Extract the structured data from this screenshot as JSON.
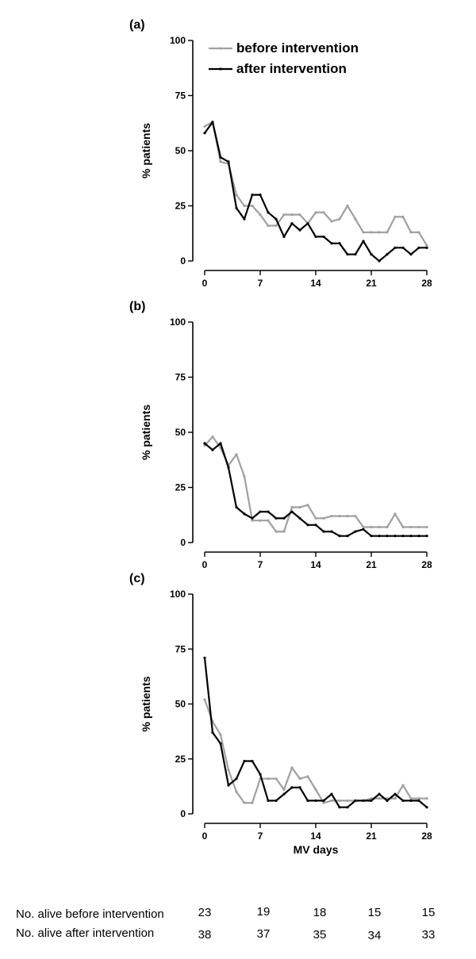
{
  "chart_data": [
    {
      "panel": "(a)",
      "type": "line",
      "ylabel": "% patients",
      "xlabel": "",
      "xticks": [
        0,
        7,
        14,
        21,
        28
      ],
      "yticks": [
        0,
        25,
        50,
        75,
        100
      ],
      "xlim": [
        0,
        28
      ],
      "ylim": [
        0,
        100
      ],
      "legend": {
        "position": "top-right",
        "entries": [
          "before intervention",
          "after intervention"
        ]
      },
      "series": [
        {
          "name": "before intervention",
          "color": "#a0a0a0",
          "x": [
            0,
            1,
            2,
            3,
            4,
            5,
            6,
            7,
            8,
            9,
            10,
            11,
            12,
            13,
            14,
            15,
            16,
            17,
            18,
            19,
            20,
            21,
            22,
            23,
            24,
            25,
            26,
            27,
            28
          ],
          "y": [
            61,
            63,
            45,
            44,
            30,
            25,
            25,
            21,
            16,
            16,
            21,
            21,
            21,
            17,
            22,
            22,
            18,
            19,
            25,
            19,
            13,
            13,
            13,
            13,
            20,
            20,
            13,
            13,
            7
          ]
        },
        {
          "name": "after intervention",
          "color": "#000000",
          "x": [
            0,
            1,
            2,
            3,
            4,
            5,
            6,
            7,
            8,
            9,
            10,
            11,
            12,
            13,
            14,
            15,
            16,
            17,
            18,
            19,
            20,
            21,
            22,
            23,
            24,
            25,
            26,
            27,
            28
          ],
          "y": [
            58,
            63,
            47,
            45,
            24,
            19,
            30,
            30,
            22,
            19,
            11,
            17,
            14,
            17,
            11,
            11,
            8,
            8,
            3,
            3,
            9,
            3,
            0,
            3,
            6,
            6,
            3,
            6,
            6
          ]
        }
      ]
    },
    {
      "panel": "(b)",
      "type": "line",
      "ylabel": "% patients",
      "xlabel": "",
      "xticks": [
        0,
        7,
        14,
        21,
        28
      ],
      "yticks": [
        0,
        25,
        50,
        75,
        100
      ],
      "xlim": [
        0,
        28
      ],
      "ylim": [
        0,
        100
      ],
      "series": [
        {
          "name": "before intervention",
          "color": "#a0a0a0",
          "x": [
            0,
            1,
            2,
            3,
            4,
            5,
            6,
            7,
            8,
            9,
            10,
            11,
            12,
            13,
            14,
            15,
            16,
            17,
            18,
            19,
            20,
            21,
            22,
            23,
            24,
            25,
            26,
            27,
            28
          ],
          "y": [
            44,
            48,
            43,
            35,
            40,
            30,
            10,
            10,
            10,
            5,
            5,
            16,
            16,
            17,
            11,
            11,
            12,
            12,
            12,
            12,
            7,
            7,
            7,
            7,
            13,
            7,
            7,
            7,
            7
          ]
        },
        {
          "name": "after intervention",
          "color": "#000000",
          "x": [
            0,
            1,
            2,
            3,
            4,
            5,
            6,
            7,
            8,
            9,
            10,
            11,
            12,
            13,
            14,
            15,
            16,
            17,
            18,
            19,
            20,
            21,
            22,
            23,
            24,
            25,
            26,
            27,
            28
          ],
          "y": [
            45,
            42,
            45,
            34,
            16,
            13,
            11,
            14,
            14,
            11,
            11,
            14,
            11,
            8,
            8,
            5,
            5,
            3,
            3,
            5,
            6,
            3,
            3,
            3,
            3,
            3,
            3,
            3,
            3
          ]
        }
      ]
    },
    {
      "panel": "(c)",
      "type": "line",
      "ylabel": "% patients",
      "xlabel": "MV days",
      "xticks": [
        0,
        7,
        14,
        21,
        28
      ],
      "yticks": [
        0,
        25,
        50,
        75,
        100
      ],
      "xlim": [
        0,
        28
      ],
      "ylim": [
        0,
        100
      ],
      "series": [
        {
          "name": "before intervention",
          "color": "#a0a0a0",
          "x": [
            0,
            1,
            2,
            3,
            4,
            5,
            6,
            7,
            8,
            9,
            10,
            11,
            12,
            13,
            14,
            15,
            16,
            17,
            18,
            19,
            20,
            21,
            22,
            23,
            24,
            25,
            26,
            27,
            28
          ],
          "y": [
            52,
            42,
            36,
            20,
            10,
            5,
            5,
            16,
            16,
            16,
            11,
            21,
            16,
            17,
            11,
            5,
            6,
            6,
            6,
            6,
            6,
            7,
            7,
            7,
            7,
            13,
            7,
            7,
            7
          ]
        },
        {
          "name": "after intervention",
          "color": "#000000",
          "x": [
            0,
            1,
            2,
            3,
            4,
            5,
            6,
            7,
            8,
            9,
            10,
            11,
            12,
            13,
            14,
            15,
            16,
            17,
            18,
            19,
            20,
            21,
            22,
            23,
            24,
            25,
            26,
            27,
            28
          ],
          "y": [
            71,
            37,
            32,
            13,
            16,
            24,
            24,
            18,
            6,
            6,
            9,
            12,
            12,
            6,
            6,
            6,
            9,
            3,
            3,
            6,
            6,
            6,
            9,
            6,
            9,
            6,
            6,
            6,
            3
          ]
        }
      ]
    }
  ],
  "alive_table": {
    "rows": [
      {
        "label": "No. alive before intervention",
        "values": [
          "23",
          "19",
          "18",
          "15",
          "15"
        ]
      },
      {
        "label": "No. alive after intervention",
        "values": [
          "38",
          "37",
          "35",
          "34",
          "33"
        ]
      }
    ]
  }
}
